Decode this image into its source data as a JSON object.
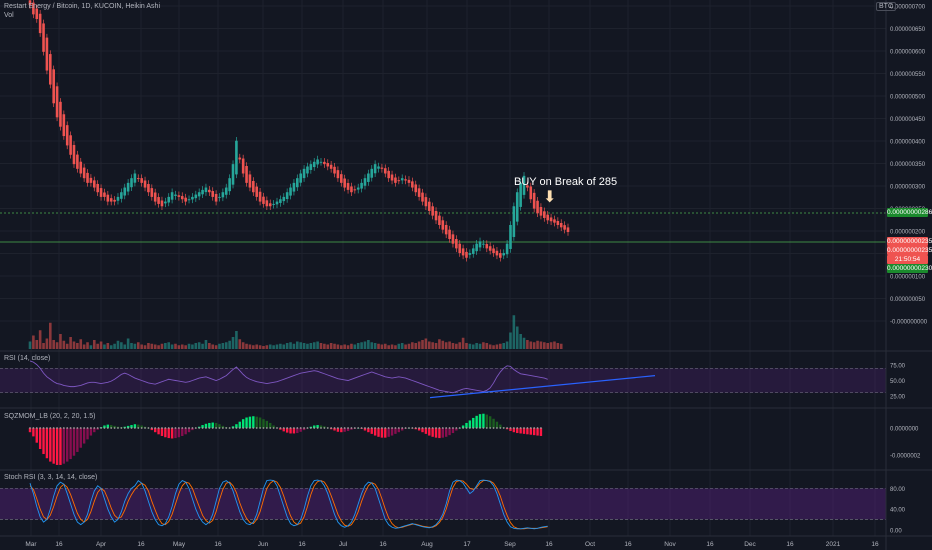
{
  "header": {
    "symbol_title": "Restart Energy / Bitcoin, 1D, KUCOIN, Heikin Ashi",
    "vol_label": "Vol",
    "currency": "BTC"
  },
  "colors": {
    "background": "#131722",
    "up": "#26a69a",
    "down": "#ef5350",
    "grid": "#1e222d",
    "rsi_line": "#7e57c2",
    "trend_line": "#2962ff",
    "support_line": "#4caf50",
    "stoch_k": "#2196f3",
    "stoch_d": "#ff6d00",
    "band_fill": "#4a1f6e",
    "sqz_up": "#00e676",
    "sqz_down": "#ff1744"
  },
  "annotation": {
    "text": "BUY on Break of 285",
    "arrow_icon": "arrow-down-icon"
  },
  "price_labels": {
    "upper_line": "0.00000000286",
    "current_1": "0.00000000235",
    "current_2": "0.00000000235",
    "countdown": "21:50:54",
    "lower_line": "0.00000000230"
  },
  "indicators": {
    "rsi_title": "RSI (14, close)",
    "sqz_title": "SQZMOM_LB (20, 2, 20, 1.5)",
    "stoch_title": "Stoch RSI (3, 3, 14, 14, close)"
  },
  "chart_data": {
    "type": "candlestick",
    "price_axis": {
      "ticks": [
        "0.000000700",
        "0.000000650",
        "0.000000600",
        "0.000000550",
        "0.000000500",
        "0.000000450",
        "0.000000400",
        "0.000000350",
        "0.000000300",
        "0.000000250",
        "0.000000200",
        "0.000000150",
        "0.000000100",
        "0.000000050",
        "-0.000000000"
      ],
      "range": [
        -1e-08,
        7.6e-07
      ]
    },
    "rsi_axis": {
      "ticks": [
        "75.00",
        "50.00",
        "25.00"
      ],
      "range": [
        10,
        90
      ]
    },
    "sqz_axis": {
      "ticks": [
        "0.0000000",
        "-0.0000002"
      ]
    },
    "stoch_axis": {
      "ticks": [
        "80.00",
        "40.00",
        "0.00"
      ],
      "range": [
        -8,
        100
      ]
    },
    "time_axis": [
      "Mar",
      "16",
      "Apr",
      "16",
      "May",
      "16",
      "Jun",
      "16",
      "Jul",
      "16",
      "Aug",
      "17",
      "Sep",
      "16",
      "Oct",
      "16",
      "Nov",
      "16",
      "Dec",
      "16",
      "2021",
      "16"
    ],
    "ha_close": [
      7.2,
      7.0,
      6.9,
      6.6,
      6.2,
      5.8,
      5.5,
      5.1,
      4.8,
      4.6,
      4.4,
      4.2,
      4.0,
      3.8,
      3.7,
      3.6,
      3.5,
      3.4,
      3.4,
      3.3,
      3.2,
      3.1,
      3.1,
      3.0,
      3.0,
      3.0,
      3.1,
      3.2,
      3.3,
      3.4,
      3.5,
      3.6,
      3.5,
      3.4,
      3.3,
      3.2,
      3.1,
      3.0,
      2.95,
      2.9,
      3.0,
      3.1,
      3.2,
      3.15,
      3.1,
      3.05,
      3.0,
      3.05,
      3.1,
      3.15,
      3.2,
      3.25,
      3.3,
      3.2,
      3.1,
      3.0,
      3.1,
      3.2,
      3.3,
      3.5,
      3.8,
      4.3,
      3.9,
      3.6,
      3.4,
      3.3,
      3.2,
      3.1,
      3.0,
      2.95,
      2.9,
      2.9,
      2.95,
      3.0,
      3.05,
      3.1,
      3.2,
      3.3,
      3.4,
      3.5,
      3.6,
      3.7,
      3.75,
      3.8,
      3.85,
      3.9,
      3.85,
      3.8,
      3.75,
      3.7,
      3.6,
      3.5,
      3.4,
      3.3,
      3.25,
      3.2,
      3.25,
      3.3,
      3.4,
      3.5,
      3.6,
      3.7,
      3.8,
      3.75,
      3.7,
      3.6,
      3.5,
      3.45,
      3.4,
      3.45,
      3.5,
      3.45,
      3.4,
      3.3,
      3.2,
      3.1,
      3.0,
      2.9,
      2.8,
      2.7,
      2.6,
      2.5,
      2.4,
      2.3,
      2.2,
      2.1,
      2.0,
      1.9,
      1.85,
      1.8,
      1.9,
      2.0,
      2.1,
      2.15,
      2.1,
      2.0,
      1.95,
      1.9,
      1.85,
      1.8,
      1.9,
      2.1,
      2.5,
      2.9,
      3.2,
      3.4,
      3.55,
      3.3,
      3.05,
      2.85,
      2.75,
      2.7,
      2.65,
      2.6,
      2.58,
      2.55,
      2.5,
      2.45,
      2.4,
      2.35
    ],
    "volume": [
      1.0,
      1.8,
      1.2,
      2.5,
      0.8,
      1.4,
      3.5,
      1.2,
      0.9,
      2.0,
      1.1,
      0.7,
      1.6,
      1.0,
      0.8,
      1.3,
      0.6,
      0.9,
      0.5,
      1.2,
      0.7,
      1.0,
      0.6,
      0.8,
      0.5,
      0.7,
      1.1,
      0.9,
      0.6,
      1.4,
      0.8,
      0.7,
      0.9,
      0.6,
      0.5,
      0.8,
      0.7,
      0.6,
      0.5,
      0.7,
      0.8,
      0.9,
      0.6,
      0.7,
      0.5,
      0.6,
      0.5,
      0.7,
      0.6,
      0.8,
      0.9,
      0.7,
      1.2,
      0.8,
      0.6,
      0.5,
      0.7,
      0.8,
      0.9,
      1.1,
      1.6,
      2.4,
      1.3,
      0.9,
      0.7,
      0.6,
      0.5,
      0.6,
      0.5,
      0.4,
      0.5,
      0.6,
      0.5,
      0.6,
      0.7,
      0.6,
      0.8,
      0.9,
      0.7,
      1.0,
      0.9,
      0.8,
      0.7,
      0.8,
      0.9,
      1.0,
      0.8,
      0.7,
      0.6,
      0.8,
      0.7,
      0.6,
      0.5,
      0.6,
      0.5,
      0.7,
      0.6,
      0.8,
      0.9,
      1.0,
      1.2,
      0.9,
      0.8,
      0.7,
      0.6,
      0.7,
      0.5,
      0.6,
      0.5,
      0.7,
      0.8,
      0.6,
      0.7,
      0.9,
      0.8,
      1.0,
      1.2,
      1.4,
      1.0,
      0.9,
      0.8,
      1.3,
      1.1,
      0.9,
      1.0,
      0.8,
      0.7,
      0.9,
      1.5,
      0.8,
      0.7,
      0.6,
      0.8,
      0.7,
      0.9,
      0.8,
      0.6,
      0.5,
      0.6,
      0.7,
      0.8,
      1.0,
      2.2,
      4.5,
      3.0,
      2.0,
      1.5,
      1.2,
      1.0,
      0.9,
      1.1,
      1.0,
      0.9,
      0.8,
      0.9,
      1.0,
      0.8,
      0.7
    ],
    "rsi": [
      82,
      80,
      76,
      70,
      62,
      56,
      52,
      48,
      45,
      44,
      42,
      41,
      40,
      40,
      41,
      42,
      44,
      46,
      47,
      47,
      46,
      45,
      46,
      47,
      49,
      52,
      56,
      60,
      62,
      60,
      57,
      54,
      52,
      50,
      48,
      46,
      45,
      44,
      46,
      48,
      50,
      52,
      51,
      50,
      49,
      48,
      47,
      48,
      50,
      52,
      54,
      55,
      56,
      54,
      52,
      50,
      52,
      55,
      58,
      63,
      68,
      72,
      66,
      60,
      55,
      52,
      50,
      48,
      47,
      46,
      45,
      46,
      47,
      48,
      50,
      52,
      54,
      56,
      58,
      60,
      62,
      63,
      64,
      65,
      66,
      65,
      63,
      61,
      59,
      57,
      55,
      53,
      52,
      51,
      50,
      52,
      54,
      56,
      58,
      60,
      62,
      64,
      62,
      60,
      58,
      56,
      55,
      54,
      55,
      56,
      55,
      54,
      52,
      50,
      48,
      46,
      44,
      42,
      40,
      38,
      36,
      34,
      33,
      32,
      31,
      30,
      32,
      34,
      36,
      37,
      36,
      35,
      34,
      33,
      32,
      34,
      38,
      46,
      56,
      64,
      70,
      74,
      73,
      68,
      64,
      61,
      60,
      59,
      58,
      57,
      56,
      55,
      54,
      52
    ],
    "squeeze": [
      -0.1,
      -0.2,
      -0.35,
      -0.5,
      -0.62,
      -0.72,
      -0.8,
      -0.85,
      -0.88,
      -0.88,
      -0.85,
      -0.8,
      -0.74,
      -0.66,
      -0.57,
      -0.47,
      -0.37,
      -0.27,
      -0.18,
      -0.1,
      -0.04,
      0.02,
      0.06,
      0.08,
      0.07,
      0.05,
      0.03,
      0.02,
      0.03,
      0.05,
      0.07,
      0.09,
      0.08,
      0.06,
      0.03,
      0.0,
      -0.05,
      -0.1,
      -0.15,
      -0.19,
      -0.22,
      -0.24,
      -0.25,
      -0.24,
      -0.22,
      -0.19,
      -0.15,
      -0.1,
      -0.05,
      -0.01,
      0.03,
      0.07,
      0.1,
      0.12,
      0.13,
      0.12,
      0.09,
      0.05,
      0.02,
      0.0,
      0.04,
      0.09,
      0.15,
      0.21,
      0.25,
      0.27,
      0.28,
      0.27,
      0.25,
      0.21,
      0.17,
      0.12,
      0.06,
      0.01,
      -0.04,
      -0.08,
      -0.11,
      -0.13,
      -0.13,
      -0.12,
      -0.09,
      -0.05,
      -0.01,
      0.03,
      0.06,
      0.07,
      0.06,
      0.04,
      0.01,
      -0.03,
      -0.06,
      -0.09,
      -0.1,
      -0.09,
      -0.07,
      -0.04,
      -0.02,
      0.0,
      -0.02,
      -0.06,
      -0.1,
      -0.14,
      -0.18,
      -0.21,
      -0.23,
      -0.23,
      -0.21,
      -0.18,
      -0.14,
      -0.1,
      -0.06,
      -0.02,
      0.0,
      -0.01,
      -0.03,
      -0.06,
      -0.1,
      -0.14,
      -0.18,
      -0.21,
      -0.23,
      -0.24,
      -0.23,
      -0.21,
      -0.17,
      -0.12,
      -0.06,
      0.0,
      0.06,
      0.12,
      0.18,
      0.24,
      0.29,
      0.33,
      0.34,
      0.32,
      0.28,
      0.22,
      0.15,
      0.08,
      0.02,
      -0.03,
      -0.07,
      -0.1,
      -0.12,
      -0.13,
      -0.14,
      -0.15,
      -0.16,
      -0.17,
      -0.18,
      -0.19
    ],
    "stoch_k": [
      90,
      70,
      45,
      25,
      15,
      20,
      40,
      65,
      85,
      92,
      88,
      70,
      50,
      30,
      15,
      10,
      15,
      30,
      55,
      75,
      85,
      80,
      60,
      40,
      25,
      15,
      20,
      35,
      55,
      70,
      80,
      85,
      95,
      90,
      75,
      55,
      35,
      20,
      10,
      8,
      12,
      25,
      45,
      70,
      88,
      95,
      92,
      80,
      60,
      40,
      25,
      15,
      10,
      15,
      30,
      55,
      80,
      92,
      95,
      90,
      75,
      55,
      35,
      20,
      12,
      10,
      15,
      30,
      55,
      80,
      95,
      96,
      95,
      85,
      65,
      45,
      25,
      12,
      8,
      10,
      20,
      40,
      65,
      85,
      95,
      96,
      94,
      85,
      70,
      50,
      30,
      15,
      8,
      5,
      8,
      15,
      30,
      50,
      70,
      85,
      92,
      90,
      80,
      60,
      40,
      20,
      10,
      5,
      3,
      4,
      6,
      8,
      10,
      12,
      10,
      8,
      6,
      5,
      4,
      6,
      10,
      18,
      30,
      50,
      75,
      92,
      96,
      95,
      90,
      80,
      70,
      75,
      85,
      95,
      96,
      95,
      93,
      85,
      70,
      50,
      30,
      15,
      6,
      3,
      2,
      2,
      3,
      4,
      3,
      2,
      3,
      5,
      6,
      7
    ],
    "stoch_d": [
      85,
      78,
      60,
      40,
      25,
      20,
      28,
      45,
      65,
      82,
      88,
      82,
      68,
      50,
      32,
      20,
      15,
      20,
      35,
      55,
      72,
      80,
      75,
      60,
      42,
      28,
      22,
      25,
      38,
      55,
      68,
      78,
      85,
      90,
      86,
      75,
      55,
      38,
      22,
      12,
      10,
      16,
      30,
      50,
      70,
      85,
      92,
      90,
      80,
      62,
      45,
      28,
      18,
      13,
      18,
      35,
      58,
      78,
      90,
      92,
      85,
      72,
      52,
      35,
      22,
      14,
      12,
      20,
      35,
      58,
      80,
      90,
      95,
      92,
      82,
      65,
      45,
      27,
      15,
      10,
      13,
      25,
      45,
      68,
      85,
      93,
      95,
      92,
      82,
      66,
      48,
      30,
      17,
      9,
      7,
      10,
      20,
      35,
      55,
      72,
      85,
      91,
      88,
      78,
      60,
      40,
      23,
      12,
      6,
      4,
      5,
      7,
      9,
      11,
      11,
      9,
      7,
      6,
      5,
      5,
      8,
      14,
      24,
      40,
      62,
      82,
      93,
      95,
      94,
      88,
      80,
      78,
      82,
      90,
      95,
      95,
      94,
      90,
      80,
      65,
      45,
      28,
      14,
      6,
      3,
      2,
      2,
      3,
      3,
      3,
      3,
      4,
      5,
      6
    ]
  }
}
